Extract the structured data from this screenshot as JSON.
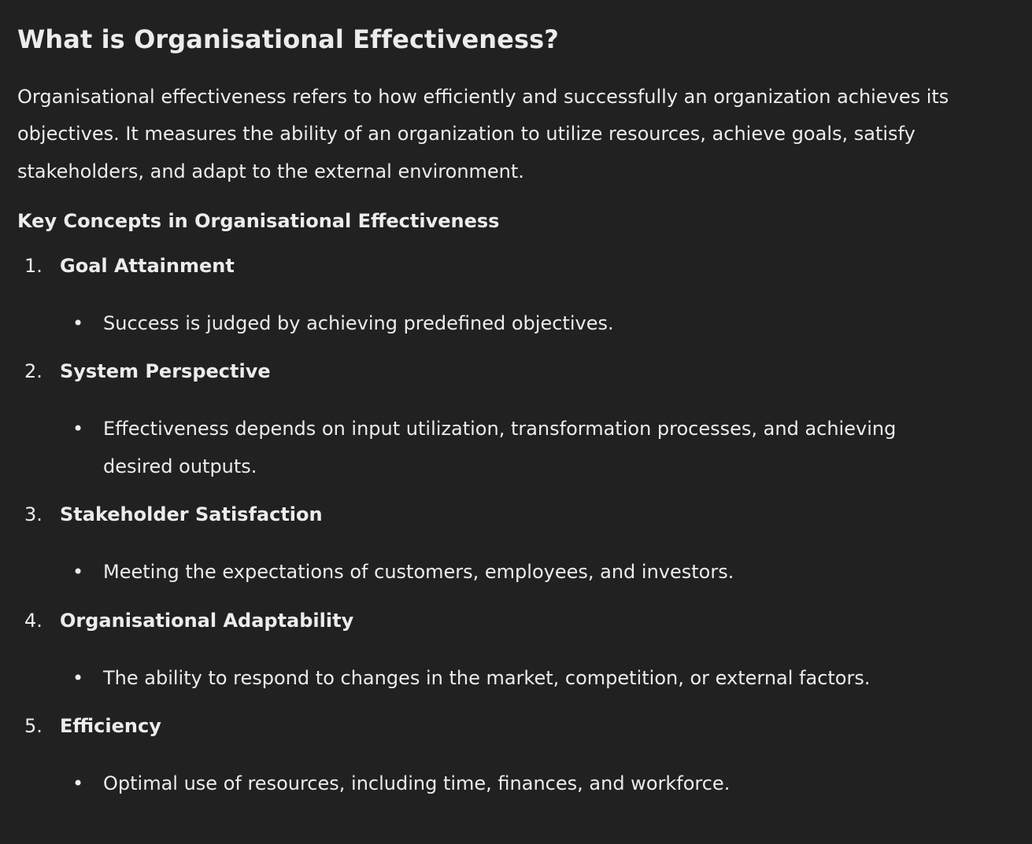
{
  "heading": "What is Organisational Effectiveness?",
  "intro": "Organisational effectiveness refers to how efficiently and successfully an organization achieves its objectives. It measures the ability of an organization to utilize resources, achieve goals, satisfy stakeholders, and adapt to the external environment.",
  "subheading": "Key Concepts in Organisational Effectiveness",
  "concepts": [
    {
      "number": "1.",
      "title": "Goal Attainment",
      "bullet": "Success is judged by achieving predefined objectives."
    },
    {
      "number": "2.",
      "title": "System Perspective",
      "bullet": "Effectiveness depends on input utilization, transformation processes, and achieving desired outputs."
    },
    {
      "number": "3.",
      "title": "Stakeholder Satisfaction",
      "bullet": "Meeting the expectations of customers, employees, and investors."
    },
    {
      "number": "4.",
      "title": "Organisational Adaptability",
      "bullet": "The ability to respond to changes in the market, competition, or external factors."
    },
    {
      "number": "5.",
      "title": "Efficiency",
      "bullet": "Optimal use of resources, including time, finances, and workforce."
    }
  ],
  "bullet_glyph": "•",
  "colors": {
    "background": "#212121",
    "text": "#ececec"
  }
}
